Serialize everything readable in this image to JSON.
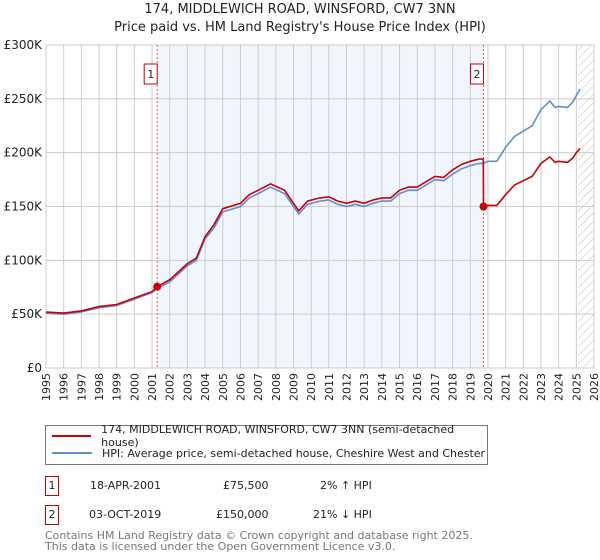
{
  "chart_data": {
    "type": "line",
    "title": "174, MIDDLEWICH ROAD, WINSFORD, CW7 3NN",
    "subtitle": "Price paid vs. HM Land Registry's House Price Index (HPI)",
    "xlim": [
      1995,
      2026
    ],
    "ylim": [
      0,
      300000
    ],
    "yticks": [
      {
        "v": 0,
        "label": "£0"
      },
      {
        "v": 50000,
        "label": "£50K"
      },
      {
        "v": 100000,
        "label": "£100K"
      },
      {
        "v": 150000,
        "label": "£150K"
      },
      {
        "v": 200000,
        "label": "£200K"
      },
      {
        "v": 250000,
        "label": "£250K"
      },
      {
        "v": 300000,
        "label": "£300K"
      }
    ],
    "xticks": [
      "1995",
      "1996",
      "1997",
      "1998",
      "1999",
      "2000",
      "2001",
      "2002",
      "2003",
      "2004",
      "2005",
      "2006",
      "2007",
      "2008",
      "2009",
      "2010",
      "2011",
      "2012",
      "2013",
      "2014",
      "2015",
      "2016",
      "2017",
      "2018",
      "2019",
      "2020",
      "2021",
      "2022",
      "2023",
      "2024",
      "2025",
      "2026"
    ],
    "grid": true,
    "shaded_range": [
      2001.29,
      2019.75
    ],
    "hatched_from": 2025.1,
    "series": [
      {
        "name": "174, MIDDLEWICH ROAD, WINSFORD, CW7 3NN (semi-detached house)",
        "color": "#cc0000",
        "x": [
          1995,
          1996,
          1997,
          1998,
          1999,
          2000,
          2001,
          2001.29,
          2002,
          2003,
          2003.5,
          2004,
          2004.5,
          2005,
          2006,
          2006.5,
          2007,
          2007.7,
          2008.5,
          2009,
          2009.3,
          2009.8,
          2010.5,
          2011,
          2011.5,
          2012,
          2012.5,
          2013,
          2013.5,
          2014,
          2014.5,
          2015,
          2015.5,
          2016,
          2016.5,
          2017,
          2017.5,
          2018,
          2018.5,
          2019,
          2019.5,
          2019.74,
          2019.75,
          2020,
          2020.5,
          2021,
          2021.5,
          2022,
          2022.5,
          2023,
          2023.5,
          2023.8,
          2024,
          2024.5,
          2024.8,
          2025,
          2025.2
        ],
        "y": [
          52000,
          51000,
          53000,
          57000,
          59000,
          65000,
          71000,
          75500,
          82000,
          97000,
          102000,
          122000,
          133000,
          148000,
          153000,
          161000,
          165000,
          171000,
          165000,
          153000,
          146000,
          155000,
          158000,
          159000,
          155000,
          153000,
          155000,
          153000,
          156000,
          158000,
          158000,
          165000,
          168000,
          168000,
          173000,
          178000,
          177000,
          184000,
          189000,
          192000,
          194000,
          194000,
          150000,
          151000,
          151000,
          161000,
          170000,
          174000,
          178000,
          190000,
          196000,
          191000,
          192000,
          191000,
          195000,
          200000,
          204000
        ]
      },
      {
        "name": "HPI: Average price, semi-detached house, Cheshire West and Chester",
        "color": "#5b8fd4",
        "x": [
          1995,
          1996,
          1997,
          1998,
          1999,
          2000,
          2001,
          2001.29,
          2002,
          2003,
          2003.5,
          2004,
          2004.5,
          2005,
          2006,
          2006.5,
          2007,
          2007.7,
          2008.5,
          2009,
          2009.3,
          2009.8,
          2010.5,
          2011,
          2011.5,
          2012,
          2012.5,
          2013,
          2013.5,
          2014,
          2014.5,
          2015,
          2015.5,
          2016,
          2016.5,
          2017,
          2017.5,
          2018,
          2018.5,
          2019,
          2019.5,
          2019.75,
          2020,
          2020.5,
          2021,
          2021.5,
          2022,
          2022.5,
          2023,
          2023.5,
          2023.8,
          2024,
          2024.5,
          2024.8,
          2025,
          2025.2
        ],
        "y": [
          51000,
          50000,
          52000,
          56000,
          58000,
          64000,
          70000,
          74000,
          80000,
          95000,
          100000,
          120000,
          130000,
          145000,
          150000,
          158000,
          162000,
          168000,
          162000,
          150000,
          143000,
          152000,
          155000,
          156000,
          152000,
          150000,
          152000,
          150000,
          153000,
          155000,
          155000,
          162000,
          165000,
          165000,
          170000,
          175000,
          174000,
          180000,
          185000,
          188000,
          190000,
          190000,
          192000,
          192000,
          205000,
          215000,
          220000,
          225000,
          240000,
          248000,
          242000,
          243000,
          242000,
          247000,
          253000,
          259000
        ]
      }
    ],
    "sales": [
      {
        "id": "1",
        "x": 2001.29,
        "y": 75500,
        "date": "18-APR-2001",
        "price": "£75,500",
        "hpi": "2% ↑ HPI"
      },
      {
        "id": "2",
        "x": 2019.75,
        "y": 150000,
        "date": "03-OCT-2019",
        "price": "£150,000",
        "hpi": "21% ↓ HPI"
      }
    ]
  },
  "legend": {
    "red": "174, MIDDLEWICH ROAD, WINSFORD, CW7 3NN (semi-detached house)",
    "blue": "HPI: Average price, semi-detached house, Cheshire West and Chester"
  },
  "footer": {
    "line1": "Contains HM Land Registry data © Crown copyright and database right 2025.",
    "line2": "This data is licensed under the Open Government Licence v3.0."
  }
}
